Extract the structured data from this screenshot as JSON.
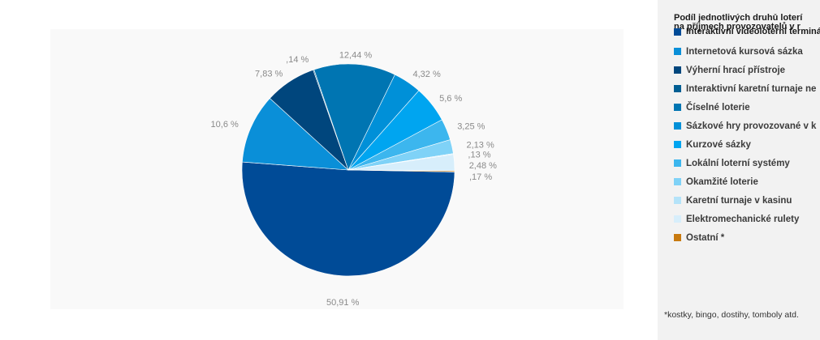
{
  "chart_data": {
    "type": "pie",
    "legend_placement": "right",
    "legend_title": [
      "Podíl jednotlivých druhů loterí",
      "na příjmech provozovatelů v r"
    ],
    "slices": [
      {
        "name": "Interaktivní videoloterní terminály",
        "value": 50.91,
        "label": "50,91 %",
        "color": "#004b97"
      },
      {
        "name": "Internetová kursová sázka",
        "value": 10.6,
        "label": "10,6 %",
        "color": "#0a8fd8"
      },
      {
        "name": "Výherní hrací přístroje",
        "value": 7.83,
        "label": "7,83 %",
        "color": "#00467d"
      },
      {
        "name": "Interaktivní karetní turnaje ne",
        "value": 0.14,
        "label": ",14 %",
        "color": "#005e93"
      },
      {
        "name": "Číselné loterie",
        "value": 12.44,
        "label": "12,44 %",
        "color": "#0075b2"
      },
      {
        "name": "Sázkové hry provozované v k",
        "value": 4.32,
        "label": "4,32 %",
        "color": "#0090d8"
      },
      {
        "name": "Kurzové sázky",
        "value": 5.6,
        "label": "5,6 %",
        "color": "#00a5f0"
      },
      {
        "name": "Lokální loterní systémy",
        "value": 3.25,
        "label": "3,25 %",
        "color": "#3cb6ee"
      },
      {
        "name": "Okamžité loterie",
        "value": 2.13,
        "label": "2,13 %",
        "color": "#7fd2f7"
      },
      {
        "name": "Karetní turnaje v kasinu",
        "value": 0.13,
        "label": ",13 %",
        "color": "#b4e3f9"
      },
      {
        "name": "Elektromechanické rulety",
        "value": 2.48,
        "label": "2,48 %",
        "color": "#d7eefb"
      },
      {
        "name": "Ostatní *",
        "value": 0.17,
        "label": ",17 %",
        "color": "#c87a10"
      }
    ]
  },
  "footnote": "*kostky, bingo, dostihy, tomboly atd."
}
